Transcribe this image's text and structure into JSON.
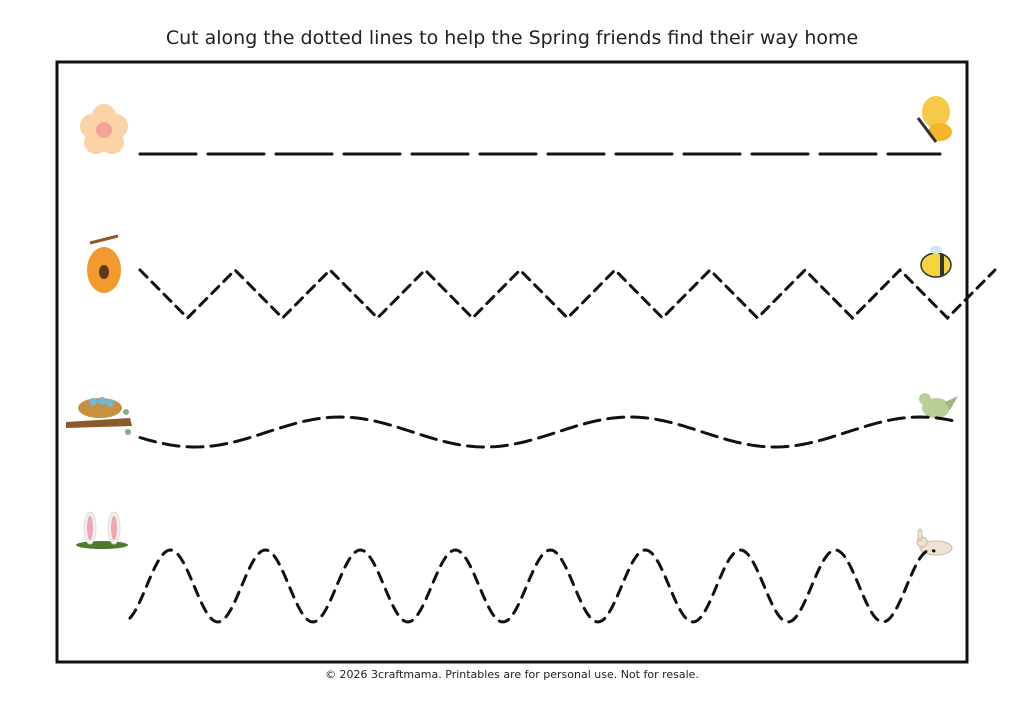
{
  "header": {
    "title": "Cut along the dotted lines to help the Spring friends find their way home"
  },
  "footer": {
    "text": "© 2026 3craftmama. Printables are for personal use. Not for resale."
  }
}
